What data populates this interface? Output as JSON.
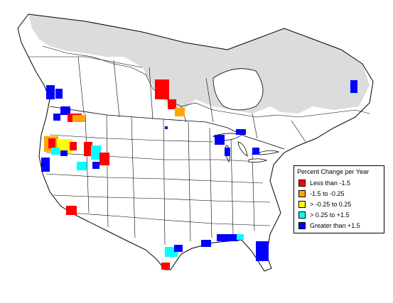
{
  "legend": {
    "title": "Percent Change per Year",
    "items": [
      {
        "label": "Less than -1.5",
        "color": "#ff0000"
      },
      {
        "label": "-1.5 to -0.25",
        "color": "#ffa500"
      },
      {
        "label": "> -0.25 to 0.25",
        "color": "#ffff00"
      },
      {
        "label": "> 0.25 to +1.5",
        "color": "#00ffff"
      },
      {
        "label": "Greater than +1.5",
        "color": "#0000ff"
      }
    ]
  },
  "colors": {
    "tundra_gray": "#dcdcdc",
    "boundary": "#000000",
    "land": "#ffffff"
  }
}
